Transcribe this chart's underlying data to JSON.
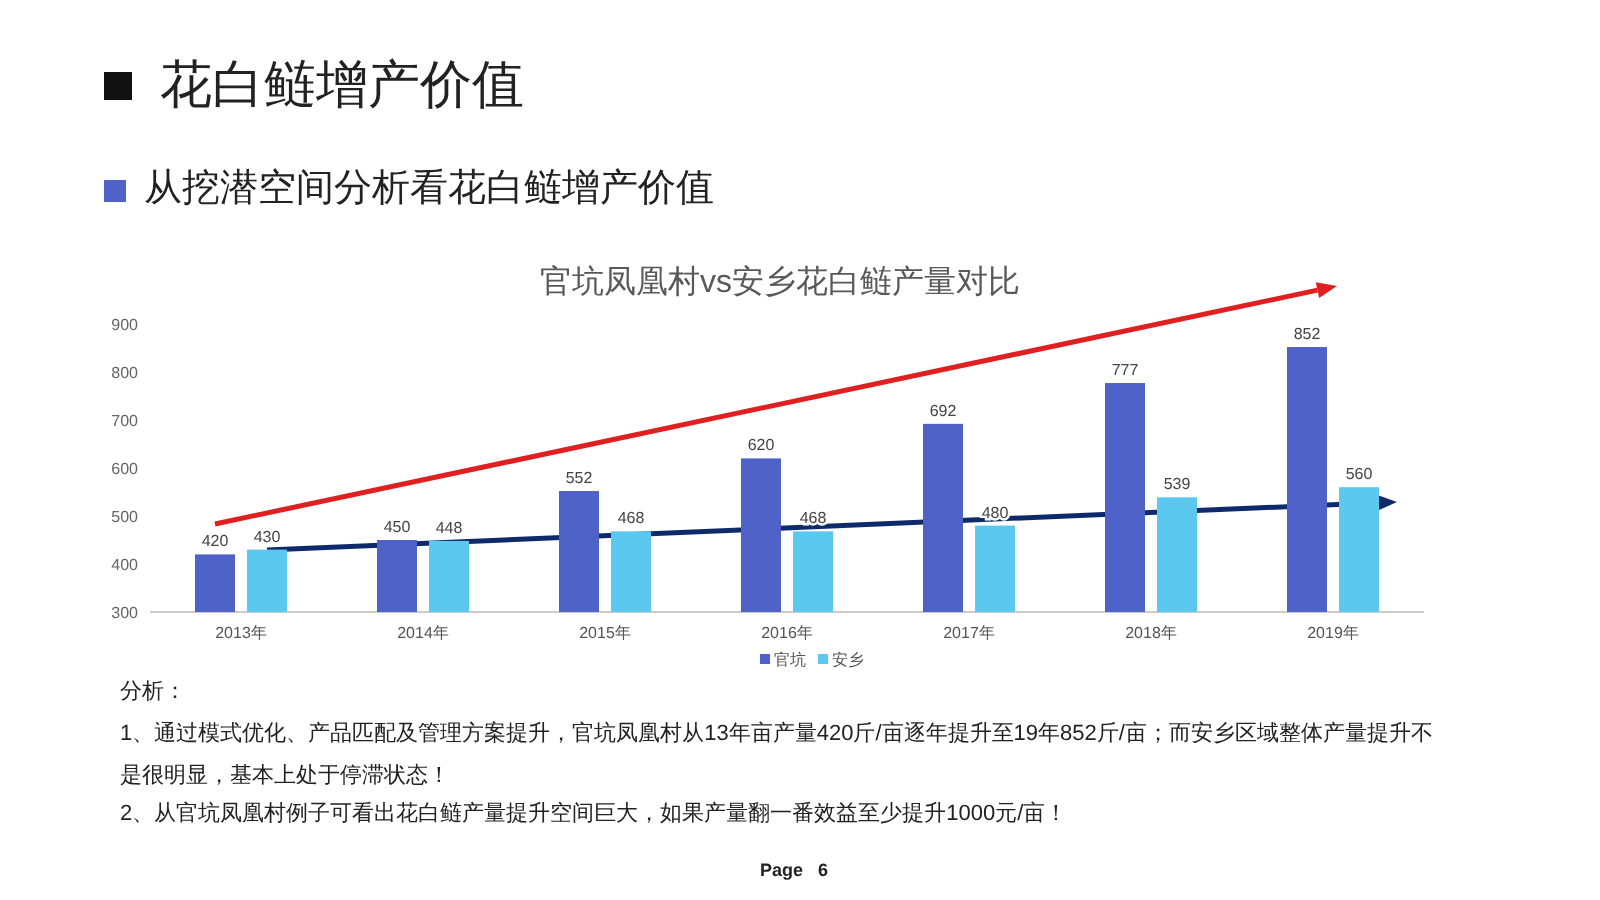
{
  "chart_data": {
    "type": "bar",
    "title": "花白鲢增产价值",
    "subtitle": "从挖潜空间分析看花白鲢增产价值",
    "categories": [
      "2013年",
      "2014年",
      "2015年",
      "2016年",
      "2017年",
      "2018年",
      "2019年"
    ],
    "series": [
      {
        "name": "官坑",
        "color": "#4e62c8",
        "values": [
          420,
          450,
          552,
          620,
          692,
          777,
          852
        ]
      },
      {
        "name": "安乡",
        "color": "#5bc8f0",
        "values": [
          430,
          448,
          468,
          468,
          480,
          539,
          560
        ]
      }
    ],
    "ylim": [
      300,
      900
    ],
    "yticks": [
      300,
      400,
      500,
      600,
      700,
      800,
      900
    ],
    "data_labels": true,
    "legend": "bottom",
    "annotations": [
      "官坑凤凰村vs安乡花白鲢产量对比",
      "分析：",
      "1、通过模式优化、产品匹配及管理方案提升，官坑凤凰村从13年亩产量420斤/亩逐年提升至19年852斤/亩；而安乡区域整体产量提升不是很明显，基本上处于停滞状态！",
      "2、从官坑凤凰村例子可看出花白鲢产量提升空间巨大，如果产量翻一番效益至少提升1000元/亩！",
      "Page 6"
    ]
  }
}
